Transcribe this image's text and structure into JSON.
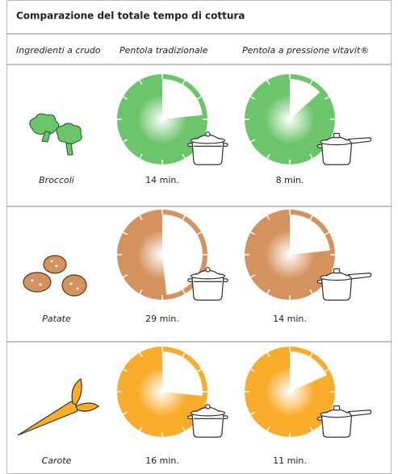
{
  "title": "Comparazione del totale tempo di cottura",
  "headers": [
    "Ingredienti a crudo",
    "Pentola tradizionale",
    "Pentola a pressione vitavit®"
  ],
  "rows": [
    {
      "name": "Broccoli",
      "color": "#6cc56b",
      "traditional": {
        "value": 14,
        "label": "14 min."
      },
      "pressure": {
        "value": 8,
        "label": "8 min."
      }
    },
    {
      "name": "Patate",
      "color": "#d4935e",
      "traditional": {
        "value": 29,
        "label": "29 min."
      },
      "pressure": {
        "value": 14,
        "label": "14 min."
      }
    },
    {
      "name": "Carote",
      "color": "#f9ab2a",
      "traditional": {
        "value": 16,
        "label": "16 min."
      },
      "pressure": {
        "value": 11,
        "label": "11 min."
      }
    }
  ]
}
